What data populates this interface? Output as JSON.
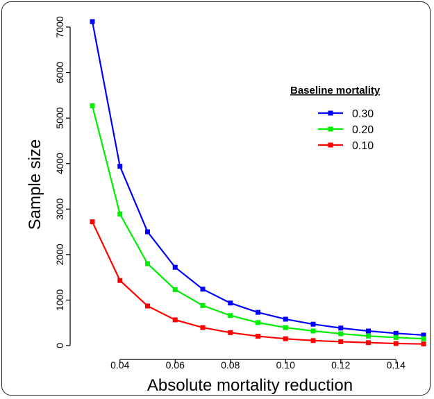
{
  "chart_data": {
    "type": "line",
    "xlabel": "Absolute mortality reduction",
    "ylabel": "Sample size",
    "xlim": [
      0.03,
      0.15
    ],
    "ylim": [
      0,
      7000
    ],
    "x_ticks": [
      "0.04",
      "0.06",
      "0.08",
      "0.10",
      "0.12",
      "0.14"
    ],
    "y_ticks": [
      "0",
      "1000",
      "2000",
      "3000",
      "4000",
      "5000",
      "6000",
      "7000"
    ],
    "x": [
      0.03,
      0.04,
      0.05,
      0.06,
      0.07,
      0.08,
      0.09,
      0.1,
      0.11,
      0.12,
      0.13,
      0.14,
      0.15
    ],
    "legend_title": "Baseline mortality",
    "series": [
      {
        "name": "0.30",
        "color": "#0000ff",
        "values": [
          7120,
          3940,
          2500,
          1720,
          1240,
          935,
          730,
          580,
          470,
          385,
          320,
          270,
          230
        ]
      },
      {
        "name": "0.20",
        "color": "#00ee00",
        "values": [
          5270,
          2890,
          1800,
          1230,
          880,
          660,
          505,
          395,
          320,
          260,
          210,
          178,
          150
        ]
      },
      {
        "name": "0.10",
        "color": "#ff0000",
        "values": [
          2720,
          1430,
          870,
          565,
          395,
          285,
          205,
          150,
          110,
          85,
          65,
          45,
          35
        ]
      }
    ]
  }
}
